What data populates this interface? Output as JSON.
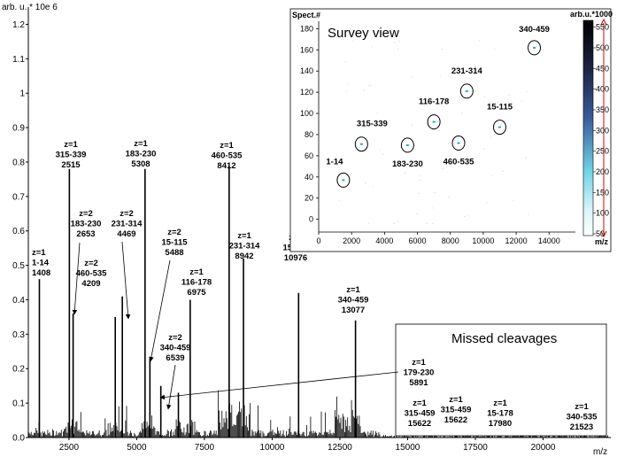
{
  "chart_data": [
    {
      "type": "bar",
      "ylabel": "arb. u. * 10e 6",
      "xlabel": "m/z",
      "xlim": [
        1000,
        22500
      ],
      "ylim": [
        0,
        1.25
      ],
      "x_ticks": [
        2500,
        5000,
        7500,
        10000,
        12500,
        15000,
        17500,
        20000
      ],
      "y_ticks": [
        0.0,
        0.1,
        0.2,
        0.3,
        0.4,
        0.5,
        0.6,
        0.7,
        0.8,
        0.9,
        1.0,
        1.1,
        1.2
      ],
      "missed_box_title": "Missed cleavages",
      "peaks": [
        {
          "x": 1408,
          "y": 0.46
        },
        {
          "x": 2515,
          "y": 0.78
        },
        {
          "x": 2653,
          "y": 0.36
        },
        {
          "x": 4209,
          "y": 0.35
        },
        {
          "x": 4469,
          "y": 0.41
        },
        {
          "x": 5308,
          "y": 0.78
        },
        {
          "x": 5488,
          "y": 0.23
        },
        {
          "x": 5891,
          "y": 0.15
        },
        {
          "x": 6539,
          "y": 0.13
        },
        {
          "x": 6975,
          "y": 0.4
        },
        {
          "x": 8412,
          "y": 0.79
        },
        {
          "x": 8942,
          "y": 0.52
        },
        {
          "x": 10976,
          "y": 0.42
        },
        {
          "x": 13077,
          "y": 0.34
        },
        {
          "x": 15622,
          "y": 0.03
        },
        {
          "x": 16780,
          "y": 0.03
        },
        {
          "x": 17980,
          "y": 0.02
        },
        {
          "x": 21523,
          "y": 0.01
        }
      ],
      "annotations": [
        {
          "lines": [
            "z=1",
            "1-14",
            "1408"
          ]
        },
        {
          "lines": [
            "z=1",
            "315-339",
            "2515"
          ]
        },
        {
          "lines": [
            "z=2",
            "183-230",
            "2653"
          ]
        },
        {
          "lines": [
            "z=2",
            "231-314",
            "4469"
          ]
        },
        {
          "lines": [
            "z=2",
            "460-535",
            "4209"
          ]
        },
        {
          "lines": [
            "z=1",
            "183-230",
            "5308"
          ]
        },
        {
          "lines": [
            "z=2",
            "15-115",
            "5488"
          ]
        },
        {
          "lines": [
            "z=1",
            "116-178",
            "6975"
          ]
        },
        {
          "lines": [
            "z=2",
            "340-459",
            "6539"
          ]
        },
        {
          "lines": [
            "z=1",
            "460-535",
            "8412"
          ]
        },
        {
          "lines": [
            "z=1",
            "231-314",
            "8942"
          ]
        },
        {
          "lines": [
            "z=1",
            "15-115",
            "10976"
          ]
        },
        {
          "lines": [
            "z=1",
            "340-459",
            "13077"
          ]
        },
        {
          "lines": [
            "z=1",
            "179-230",
            "5891"
          ]
        },
        {
          "lines": [
            "z=1",
            "315-459",
            "15622"
          ]
        },
        {
          "lines": [
            "z=1",
            "315-459",
            "15622"
          ]
        },
        {
          "lines": [
            "z=1",
            "15-178",
            "17980"
          ]
        },
        {
          "lines": [
            "z=1",
            "340-535",
            "21523"
          ]
        }
      ]
    },
    {
      "type": "scatter",
      "title": "Survey view",
      "ylabel": "Spect.#",
      "xlabel": "m/z",
      "colorbar_label": "arb.u.*1000",
      "xlim": [
        0,
        15600
      ],
      "ylim": [
        -12,
        187
      ],
      "x_ticks": [
        0,
        2000,
        4000,
        6000,
        8000,
        10000,
        12000,
        14000
      ],
      "y_ticks": [
        0,
        20,
        40,
        60,
        80,
        100,
        120,
        140,
        160,
        180
      ],
      "colorbar_ticks": [
        50,
        100,
        150,
        200,
        250,
        300,
        350,
        400,
        450,
        500,
        550
      ],
      "colorbar_range": [
        50,
        560
      ],
      "points": [
        {
          "label": "1-14",
          "x": 1500,
          "y": 37
        },
        {
          "label": "315-339",
          "x": 2600,
          "y": 71
        },
        {
          "label": "183-230",
          "x": 5400,
          "y": 70
        },
        {
          "label": "116-178",
          "x": 7000,
          "y": 92
        },
        {
          "label": "460-535",
          "x": 8500,
          "y": 72
        },
        {
          "label": "231-314",
          "x": 9000,
          "y": 121
        },
        {
          "label": "15-115",
          "x": 11000,
          "y": 87
        },
        {
          "label": "340-459",
          "x": 13100,
          "y": 162
        }
      ]
    }
  ]
}
